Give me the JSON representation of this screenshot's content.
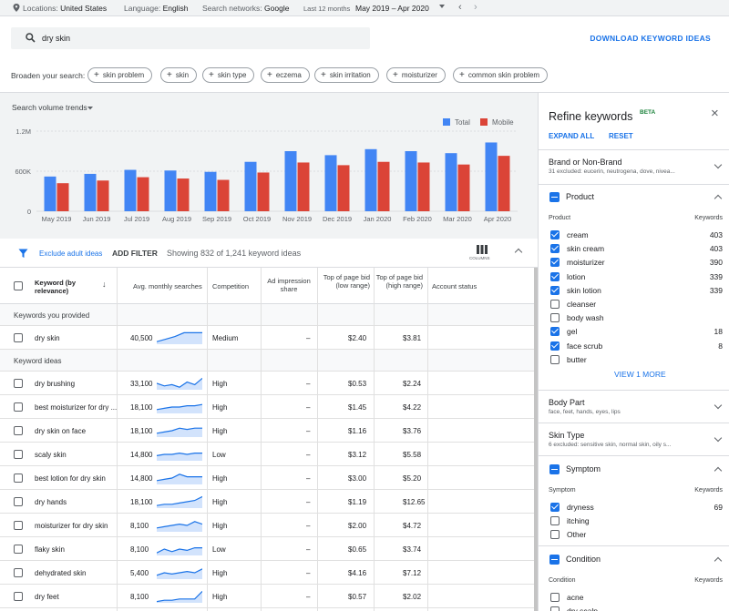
{
  "topbar": {
    "locations_label": "Locations:",
    "locations_value": "United States",
    "language_label": "Language:",
    "language_value": "English",
    "networks_label": "Search networks:",
    "networks_value": "Google",
    "period_label": "Last 12 months",
    "period_value": "May 2019 – Apr 2020"
  },
  "search": {
    "query": "dry skin",
    "download_label": "DOWNLOAD KEYWORD IDEAS"
  },
  "broaden": {
    "label": "Broaden your search:",
    "chips": [
      "skin problem",
      "skin",
      "skin type",
      "eczema",
      "skin irritation",
      "moisturizer",
      "common skin problem"
    ]
  },
  "chart_data": {
    "type": "bar",
    "title": "Search volume trends",
    "categories": [
      "May 2019",
      "Jun 2019",
      "Jul 2019",
      "Aug 2019",
      "Sep 2019",
      "Oct 2019",
      "Nov 2019",
      "Dec 2019",
      "Jan 2020",
      "Feb 2020",
      "Mar 2020",
      "Apr 2020"
    ],
    "series": [
      {
        "name": "Total",
        "color": "#4285f4",
        "values": [
          520000,
          560000,
          620000,
          610000,
          590000,
          740000,
          900000,
          840000,
          930000,
          900000,
          870000,
          1030000
        ]
      },
      {
        "name": "Mobile",
        "color": "#db4437",
        "values": [
          420000,
          460000,
          510000,
          490000,
          470000,
          580000,
          730000,
          690000,
          740000,
          730000,
          700000,
          830000
        ]
      }
    ],
    "yticks": [
      "1.2M",
      "600K",
      "0"
    ],
    "ylim": [
      0,
      1200000
    ],
    "legend": "top-right",
    "grid": true
  },
  "filter": {
    "exclude_label": "Exclude adult ideas",
    "add_filter": "ADD FILTER",
    "showing": "Showing 832 of 1,241 keyword ideas",
    "columns_label": "COLUMNS"
  },
  "table": {
    "headers": {
      "keyword": "Keyword (by relevance)",
      "searches": "Avg. monthly searches",
      "competition": "Competition",
      "impression": "Ad impression share",
      "bid_low": "Top of page bid (low range)",
      "bid_high": "Top of page bid (high range)",
      "status": "Account status"
    },
    "section_provided": "Keywords you provided",
    "section_ideas": "Keyword ideas",
    "provided": [
      {
        "keyword": "dry skin",
        "searches": "40,500",
        "competition": "Medium",
        "impression": "–",
        "low": "$2.40",
        "high": "$3.81",
        "trend": [
          0.2,
          0.4,
          0.6,
          0.9,
          0.9,
          0.9
        ]
      }
    ],
    "ideas": [
      {
        "keyword": "dry brushing",
        "searches": "33,100",
        "competition": "High",
        "impression": "–",
        "low": "$0.53",
        "high": "$2.24",
        "trend": [
          0.5,
          0.3,
          0.4,
          0.2,
          0.6,
          0.4,
          0.9
        ]
      },
      {
        "keyword": "best moisturizer for dry ...",
        "searches": "18,100",
        "competition": "High",
        "impression": "–",
        "low": "$1.45",
        "high": "$4.22",
        "trend": [
          0.3,
          0.4,
          0.5,
          0.5,
          0.6,
          0.6,
          0.7
        ]
      },
      {
        "keyword": "dry skin on face",
        "searches": "18,100",
        "competition": "High",
        "impression": "–",
        "low": "$1.16",
        "high": "$3.76",
        "trend": [
          0.3,
          0.4,
          0.5,
          0.7,
          0.6,
          0.7,
          0.7
        ]
      },
      {
        "keyword": "scaly skin",
        "searches": "14,800",
        "competition": "Low",
        "impression": "–",
        "low": "$3.12",
        "high": "$5.58",
        "trend": [
          0.4,
          0.5,
          0.5,
          0.6,
          0.5,
          0.6,
          0.6
        ]
      },
      {
        "keyword": "best lotion for dry skin",
        "searches": "14,800",
        "competition": "High",
        "impression": "–",
        "low": "$3.00",
        "high": "$5.20",
        "trend": [
          0.3,
          0.4,
          0.5,
          0.8,
          0.6,
          0.6,
          0.6
        ]
      },
      {
        "keyword": "dry hands",
        "searches": "18,100",
        "competition": "High",
        "impression": "–",
        "low": "$1.19",
        "high": "$12.65",
        "trend": [
          0.2,
          0.3,
          0.3,
          0.4,
          0.5,
          0.6,
          0.9
        ]
      },
      {
        "keyword": "moisturizer for dry skin",
        "searches": "8,100",
        "competition": "High",
        "impression": "–",
        "low": "$2.00",
        "high": "$4.72",
        "trend": [
          0.3,
          0.4,
          0.5,
          0.6,
          0.5,
          0.8,
          0.6
        ]
      },
      {
        "keyword": "flaky skin",
        "searches": "8,100",
        "competition": "Low",
        "impression": "–",
        "low": "$0.65",
        "high": "$3.74",
        "trend": [
          0.2,
          0.5,
          0.3,
          0.5,
          0.4,
          0.6,
          0.6
        ]
      },
      {
        "keyword": "dehydrated skin",
        "searches": "5,400",
        "competition": "High",
        "impression": "–",
        "low": "$4.16",
        "high": "$7.12",
        "trend": [
          0.3,
          0.5,
          0.4,
          0.5,
          0.6,
          0.5,
          0.8
        ]
      },
      {
        "keyword": "dry feet",
        "searches": "8,100",
        "competition": "High",
        "impression": "–",
        "low": "$0.57",
        "high": "$2.02",
        "trend": [
          0.1,
          0.2,
          0.2,
          0.3,
          0.3,
          0.3,
          0.9
        ]
      }
    ]
  },
  "panel": {
    "title": "Refine keywords",
    "beta": "BETA",
    "expand_all": "EXPAND ALL",
    "reset": "RESET",
    "brand": {
      "title": "Brand or Non-Brand",
      "subtitle": "31 excluded: eucerin, neutrogena, dove, nivea..."
    },
    "product": {
      "title": "Product",
      "col_left": "Product",
      "col_right": "Keywords",
      "items": [
        {
          "label": "cream",
          "count": "403",
          "checked": true
        },
        {
          "label": "skin cream",
          "count": "403",
          "checked": true
        },
        {
          "label": "moisturizer",
          "count": "390",
          "checked": true
        },
        {
          "label": "lotion",
          "count": "339",
          "checked": true
        },
        {
          "label": "skin lotion",
          "count": "339",
          "checked": true
        },
        {
          "label": "cleanser",
          "count": "",
          "checked": false
        },
        {
          "label": "body wash",
          "count": "",
          "checked": false
        },
        {
          "label": "gel",
          "count": "18",
          "checked": true
        },
        {
          "label": "face scrub",
          "count": "8",
          "checked": true
        },
        {
          "label": "butter",
          "count": "",
          "checked": false
        }
      ],
      "view_more": "VIEW 1 MORE"
    },
    "body_part": {
      "title": "Body Part",
      "subtitle": "face, feet, hands, eyes, lips"
    },
    "skin_type": {
      "title": "Skin Type",
      "subtitle": "6 excluded: sensitive skin, normal skin, oily s..."
    },
    "symptom": {
      "title": "Symptom",
      "col_left": "Symptom",
      "col_right": "Keywords",
      "items": [
        {
          "label": "dryness",
          "count": "69",
          "checked": true
        },
        {
          "label": "itching",
          "count": "",
          "checked": false
        },
        {
          "label": "Other",
          "count": "",
          "checked": false
        }
      ]
    },
    "condition": {
      "title": "Condition",
      "col_left": "Condition",
      "col_right": "Keywords",
      "items": [
        {
          "label": "acne",
          "count": "",
          "checked": false
        },
        {
          "label": "dry scalp",
          "count": "",
          "checked": false
        }
      ]
    }
  }
}
